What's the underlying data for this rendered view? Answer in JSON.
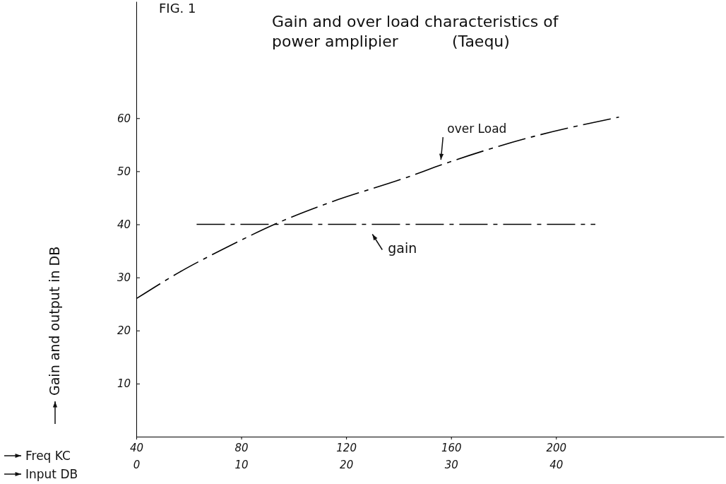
{
  "chart_data": {
    "type": "line",
    "title": "Gain and over load characteristics of power amplipier",
    "subtitle": "(Taequ)",
    "annotations": [
      "FIG. 1"
    ],
    "xlabel": "Freq KC",
    "x2label": "Input DB",
    "ylabel": "Gain and output in DB",
    "xlim": [
      40,
      264
    ],
    "xticks": [
      40,
      80,
      120,
      160,
      200
    ],
    "x2lim": [
      0,
      56
    ],
    "x2ticks": [
      0,
      10,
      20,
      30,
      40
    ],
    "ylim": [
      0,
      82
    ],
    "yticks": [
      10,
      20,
      30,
      40,
      50,
      60
    ],
    "grid": false,
    "line_style": "dashed",
    "marker": "none",
    "series": [
      {
        "name": "over Load",
        "color": "#000000",
        "x": [
          40,
          59,
          73,
          95,
          112,
          144,
          158,
          188,
          224
        ],
        "values": [
          26,
          31.7,
          35.3,
          40.5,
          43.8,
          49,
          51.5,
          56.1,
          60.2
        ]
      },
      {
        "name": "gain",
        "color": "#000000",
        "x": [
          63,
          215
        ],
        "values": [
          40,
          40
        ]
      }
    ]
  }
}
